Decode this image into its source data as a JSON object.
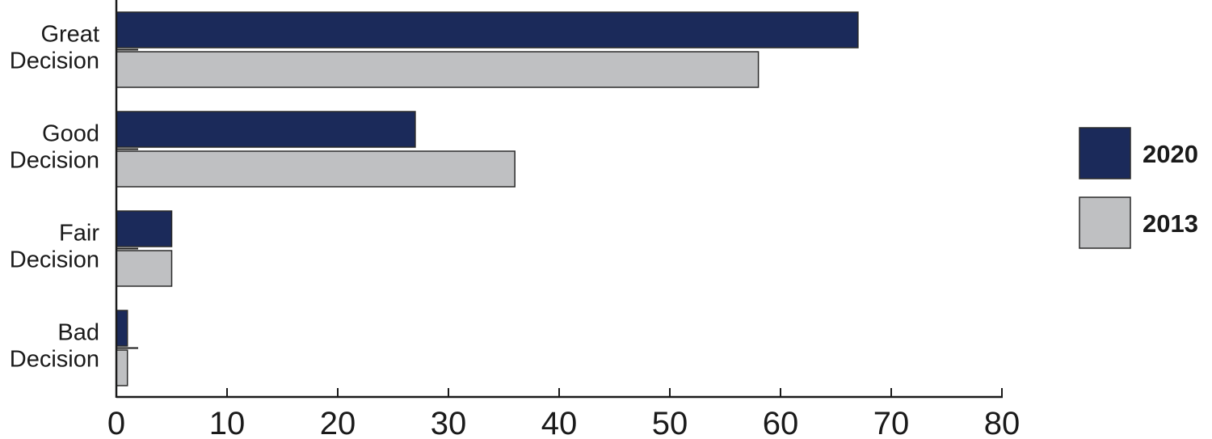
{
  "chart_data": {
    "type": "bar",
    "orientation": "horizontal",
    "categories": [
      [
        "Great",
        "Decision"
      ],
      [
        "Good",
        "Decision"
      ],
      [
        "Fair",
        "Decision"
      ],
      [
        "Bad",
        "Decision"
      ]
    ],
    "series": [
      {
        "name": "2020",
        "values": [
          67,
          27,
          5,
          1
        ],
        "color": "#1b2a5a"
      },
      {
        "name": "2013",
        "values": [
          58,
          36,
          5,
          1
        ],
        "color": "#bfc0c2"
      }
    ],
    "xlim": [
      0,
      80
    ],
    "xticks": [
      0,
      10,
      20,
      30,
      40,
      50,
      60,
      70,
      80
    ],
    "grid": false,
    "legend_position": "right"
  }
}
